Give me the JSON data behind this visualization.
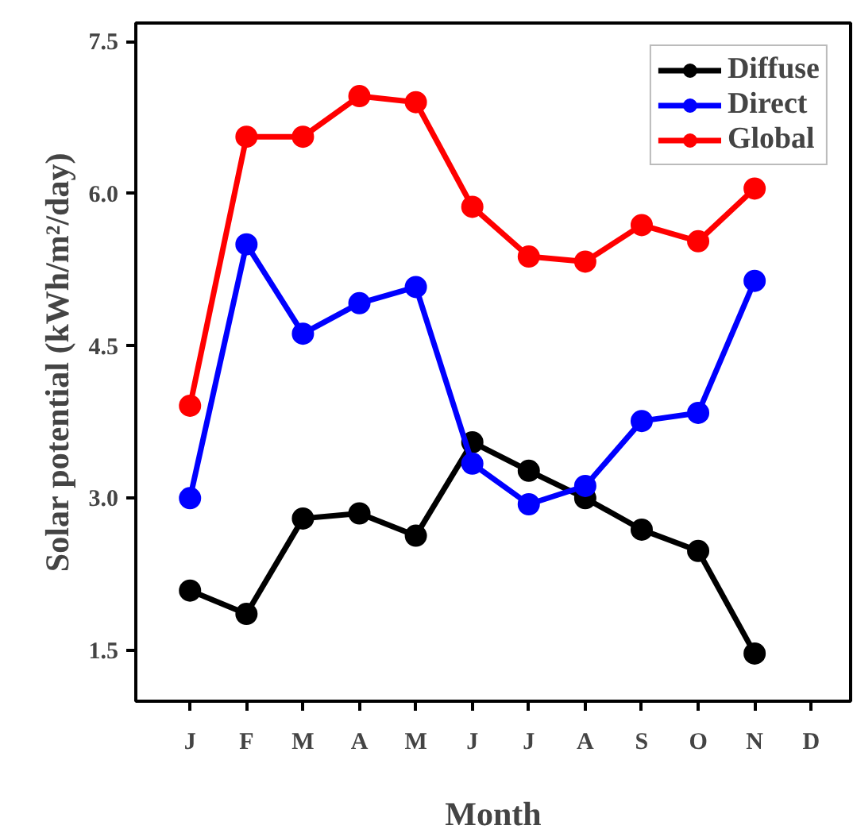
{
  "chart_data": {
    "type": "line",
    "xlabel": "Month",
    "ylabel": "Solar potential (kWh/m²/day)",
    "categories": [
      "J",
      "F",
      "M",
      "A",
      "M",
      "J",
      "J",
      "A",
      "S",
      "O",
      "N",
      "D"
    ],
    "series": [
      {
        "name": "Diffuse",
        "color": "#000000",
        "values": [
          2.09,
          1.86,
          2.8,
          2.85,
          2.63,
          3.55,
          3.27,
          3.0,
          2.69,
          2.48,
          1.47,
          null
        ]
      },
      {
        "name": "Direct",
        "color": "#0000ff",
        "values": [
          3.0,
          5.5,
          4.62,
          4.92,
          5.08,
          3.34,
          2.94,
          3.12,
          3.76,
          3.84,
          5.14,
          null
        ]
      },
      {
        "name": "Global",
        "color": "#ff0000",
        "values": [
          3.91,
          6.56,
          6.56,
          6.96,
          6.9,
          5.87,
          5.38,
          5.33,
          5.69,
          5.53,
          6.05,
          null
        ]
      }
    ],
    "ylim": [
      1.0,
      7.68
    ],
    "yticks": [
      {
        "value": 1.5,
        "label": "1.5"
      },
      {
        "value": 3.0,
        "label": "3.0"
      },
      {
        "value": 4.5,
        "label": "4.5"
      },
      {
        "value": 6.0,
        "label": "6.0"
      },
      {
        "value": 7.5,
        "label": "7.5"
      }
    ],
    "marker": "circle",
    "line_style": "solid",
    "grid": false,
    "legend": "top right"
  }
}
